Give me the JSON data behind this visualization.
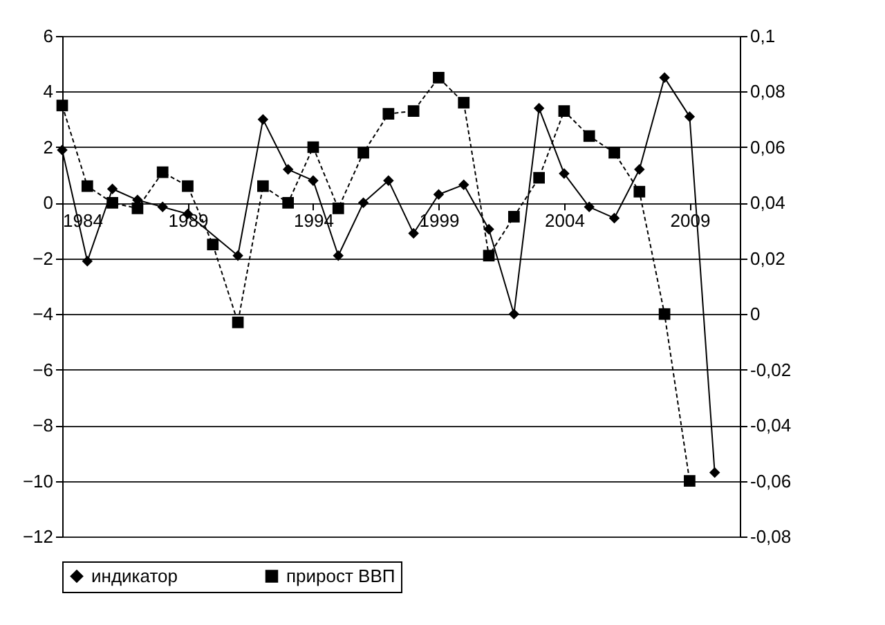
{
  "chart_data": {
    "type": "line",
    "x": [
      1984,
      1985,
      1986,
      1987,
      1988,
      1989,
      1990,
      1991,
      1992,
      1993,
      1994,
      1995,
      1996,
      1997,
      1998,
      1999,
      2000,
      2001,
      2002,
      2003,
      2004,
      2005,
      2006,
      2007,
      2008,
      2009,
      2010
    ],
    "series": [
      {
        "name": "индикатор",
        "color": "#000000",
        "marker": "diamond",
        "line_style": "solid",
        "values": [
          1.9,
          -2.1,
          0.5,
          0.1,
          -0.15,
          -0.4,
          null,
          -1.9,
          3.0,
          1.2,
          0.8,
          -1.9,
          0.0,
          0.8,
          -1.1,
          0.3,
          0.65,
          -0.95,
          -4.0,
          3.4,
          1.05,
          -0.15,
          -0.55,
          1.2,
          4.5,
          3.1,
          -9.7
        ]
      },
      {
        "name": "прирост ВВП",
        "color": "#000000",
        "marker": "square",
        "line_style": "dashed",
        "axis": "y2",
        "values": [
          0.075,
          0.046,
          0.04,
          0.038,
          0.051,
          0.046,
          0.025,
          -0.003,
          0.046,
          0.04,
          0.06,
          0.038,
          0.058,
          0.072,
          0.073,
          0.085,
          0.076,
          0.021,
          0.035,
          0.049,
          0.073,
          0.064,
          0.058,
          0.044,
          0.0,
          -0.06,
          null
        ]
      }
    ],
    "xlim": [
      1984,
      2011
    ],
    "xticks": [
      1984,
      1989,
      1994,
      1999,
      2004,
      2009
    ],
    "ylim": [
      -12,
      6
    ],
    "yticks": [
      -12,
      -10,
      -8,
      -6,
      -4,
      -2,
      0,
      2,
      4,
      6
    ],
    "y2lim": [
      -0.08,
      0.1
    ],
    "y2ticks": [
      {
        "value": -0.08,
        "label": "-0,08"
      },
      {
        "value": -0.06,
        "label": "-0,06"
      },
      {
        "value": -0.04,
        "label": "-0,04"
      },
      {
        "value": -0.02,
        "label": "-0,02"
      },
      0,
      {
        "value": 0.02,
        "label": "0,02"
      },
      {
        "value": 0.04,
        "label": "0,04"
      },
      {
        "value": 0.06,
        "label": "0,06"
      },
      {
        "value": 0.08,
        "label": "0,08"
      },
      {
        "value": 0.1,
        "label": "0,1"
      }
    ],
    "grid": "y",
    "legend": "bottom"
  }
}
